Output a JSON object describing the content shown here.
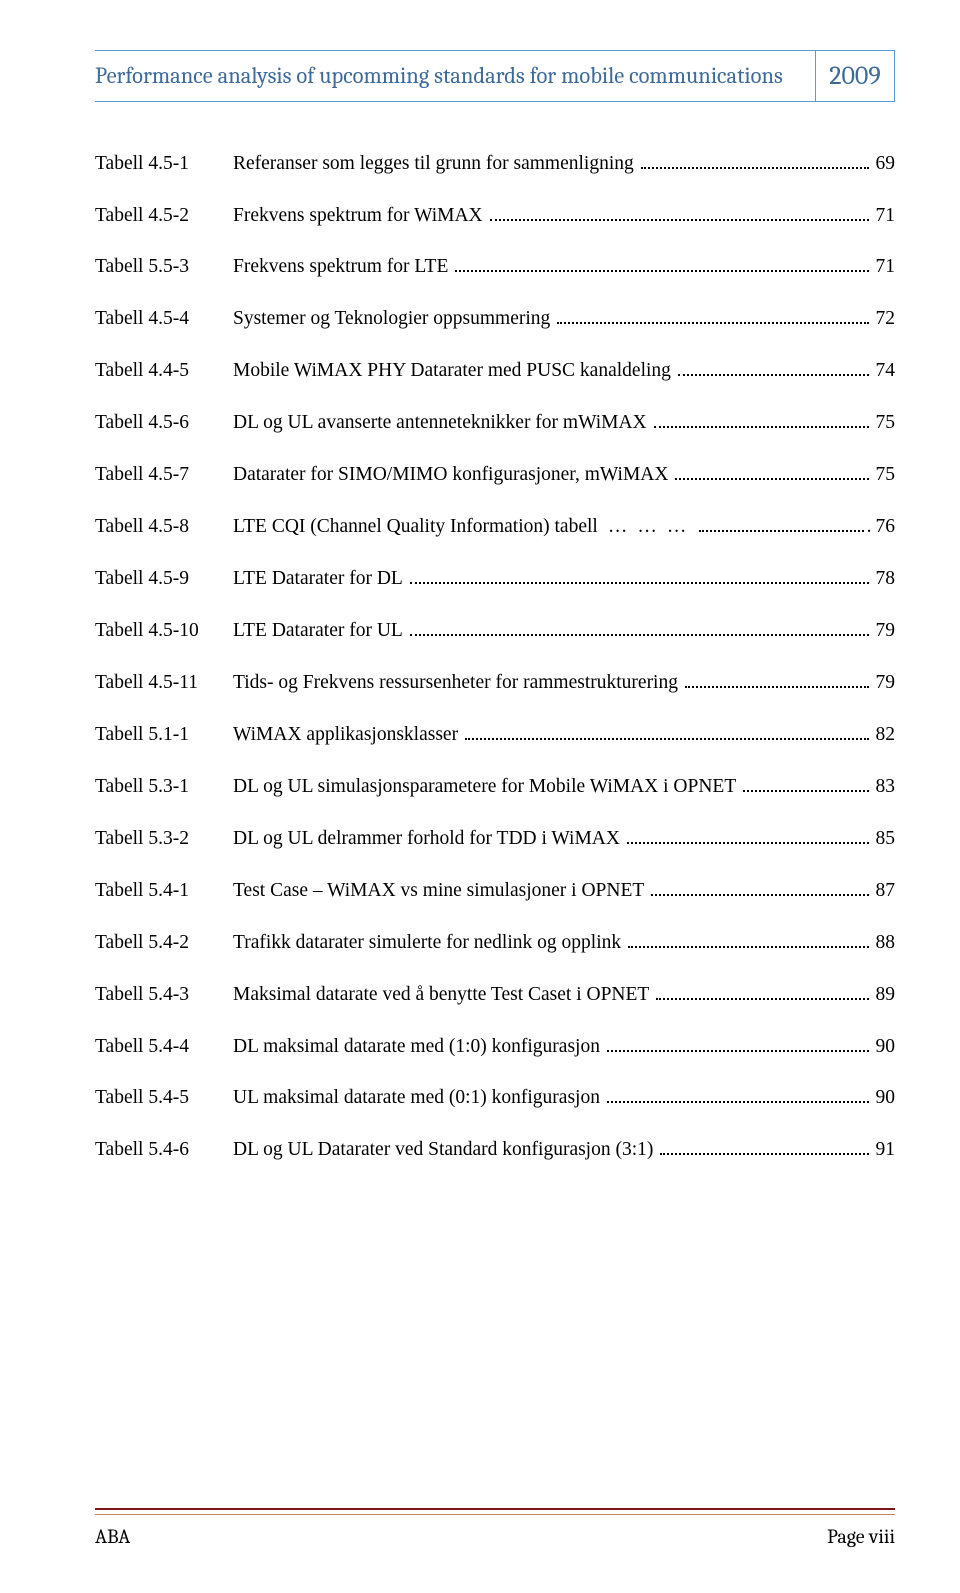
{
  "header": {
    "title": "Performance analysis of upcomming standards for mobile communications",
    "year": "2009",
    "title_color": "#3e6a99",
    "border_color": "#5b9bd5"
  },
  "entries": [
    {
      "label": "Tabell 4.5-1",
      "desc": "Referanser som legges til grunn for sammenligning",
      "page": "69",
      "wide": true
    },
    {
      "label": "Tabell 4.5-2",
      "desc": "Frekvens spektrum  for WiMAX",
      "page": "71"
    },
    {
      "label": "Tabell 5.5-3",
      "desc": "Frekvens spektrum for  LTE",
      "page": "71"
    },
    {
      "label": "Tabell 4.5-4",
      "desc": "Systemer og Teknologier oppsummering",
      "page": "72"
    },
    {
      "label": "Tabell 4.4-5",
      "desc": "Mobile WiMAX PHY Datarater med PUSC kanaldeling",
      "page": "74",
      "wide": true
    },
    {
      "label": "Tabell 4.5-6",
      "desc": "DL og UL avanserte antenneteknikker for mWiMAX",
      "page": "75",
      "wide": true
    },
    {
      "label": "Tabell 4.5-7",
      "desc": "Datarater for SIMO/MIMO konfigurasjoner, mWiMAX",
      "page": "75",
      "wide": true
    },
    {
      "label": "Tabell 4.5-8",
      "desc": "LTE CQI (Channel Quality Information) tabell",
      "page": "76",
      "special_leader": true
    },
    {
      "label": "Tabell 4.5-9",
      "desc": "LTE Datarater for DL",
      "page": "78"
    },
    {
      "label": "Tabell 4.5-10",
      "desc": "LTE Datarater for UL",
      "page": "79"
    },
    {
      "label": "Tabell 4.5-11",
      "desc": "Tids- og Frekvens ressursenheter for rammestrukturering",
      "page": "79",
      "wide": true
    },
    {
      "label": "Tabell 5.1-1",
      "desc": "WiMAX applikasjonsklasser",
      "page": "82"
    },
    {
      "label": "Tabell 5.3-1",
      "desc": "DL og UL simulasjonsparametere for Mobile WiMAX i OPNET",
      "page": "83",
      "wide": true
    },
    {
      "label": "Tabell 5.3-2",
      "desc": "DL og UL delrammer forhold for TDD i WiMAX",
      "page": "85",
      "wide": true
    },
    {
      "label": "Tabell 5.4-1",
      "desc": "Test Case – WiMAX vs mine simulasjoner i OPNET",
      "page": "87",
      "wide": true
    },
    {
      "label": "Tabell 5.4-2",
      "desc": "Trafikk datarater simulerte for nedlink og opplink",
      "page": "88",
      "wide": true
    },
    {
      "label": "Tabell 5.4-3",
      "desc": "Maksimal datarate ved å benytte Test Caset i OPNET",
      "page": "89",
      "wide": true
    },
    {
      "label": "Tabell 5.4-4",
      "desc": "DL maksimal datarate med (1:0) konfigurasjon",
      "page": "90",
      "wide": true
    },
    {
      "label": "Tabell 5.4-5",
      "desc": "UL maksimal datarate med (0:1) konfigurasjon",
      "page": "90",
      "wide": true
    },
    {
      "label": "Tabell 5.4-6",
      "desc": "DL og UL Datarater ved Standard  konfigurasjon  (3:1)",
      "page": "91",
      "wide": true
    }
  ],
  "footer": {
    "left": "ABA",
    "right": "Page viii",
    "line_top_color": "#7a1716",
    "line_bottom_color": "#c5866f"
  }
}
